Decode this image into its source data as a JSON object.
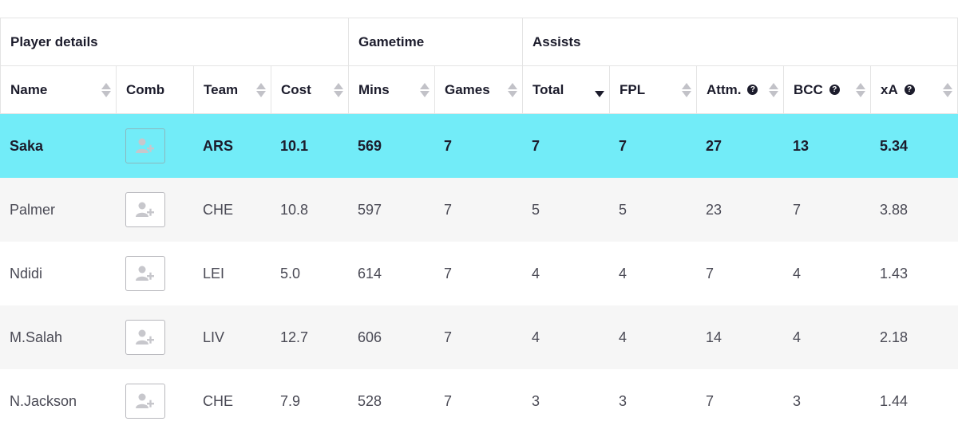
{
  "groups": {
    "player": "Player details",
    "gametime": "Gametime",
    "assists": "Assists"
  },
  "columns": {
    "name": "Name",
    "comb": "Comb",
    "team": "Team",
    "cost": "Cost",
    "mins": "Mins",
    "games": "Games",
    "total": "Total",
    "fpl": "FPL",
    "attm": "Attm.",
    "bcc": "BCC",
    "xa": "xA"
  },
  "help_glyph": "?",
  "sort": {
    "active_column": "Total",
    "direction": "descending"
  },
  "rows": [
    {
      "name": "Saka",
      "team": "ARS",
      "cost": "10.1",
      "mins": "569",
      "games": "7",
      "total": "7",
      "fpl": "7",
      "attm": "27",
      "bcc": "13",
      "xa": "5.34",
      "highlighted": true
    },
    {
      "name": "Palmer",
      "team": "CHE",
      "cost": "10.8",
      "mins": "597",
      "games": "7",
      "total": "5",
      "fpl": "5",
      "attm": "23",
      "bcc": "7",
      "xa": "3.88"
    },
    {
      "name": "Ndidi",
      "team": "LEI",
      "cost": "5.0",
      "mins": "614",
      "games": "7",
      "total": "4",
      "fpl": "4",
      "attm": "7",
      "bcc": "4",
      "xa": "1.43"
    },
    {
      "name": "M.Salah",
      "team": "LIV",
      "cost": "12.7",
      "mins": "606",
      "games": "7",
      "total": "4",
      "fpl": "4",
      "attm": "14",
      "bcc": "4",
      "xa": "2.18"
    },
    {
      "name": "N.Jackson",
      "team": "CHE",
      "cost": "7.9",
      "mins": "528",
      "games": "7",
      "total": "3",
      "fpl": "3",
      "attm": "7",
      "bcc": "3",
      "xa": "1.44"
    }
  ],
  "colors": {
    "highlight": "#72ecf8",
    "alt_row": "#f6f6f6",
    "text_dark": "#1c1c2c"
  },
  "icons": {
    "comb": "add-user-icon",
    "sort": "sort-arrows-icon",
    "help": "help-circle-icon"
  }
}
